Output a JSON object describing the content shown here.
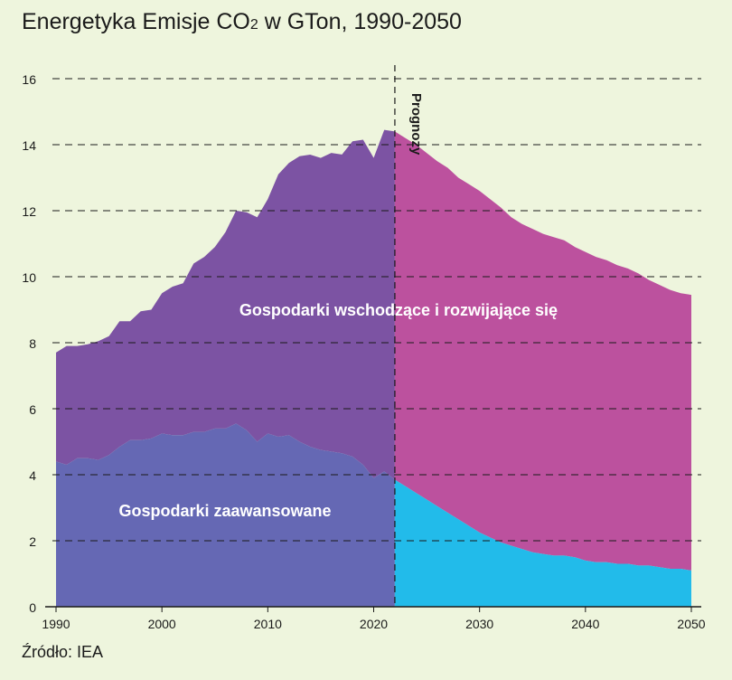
{
  "title_main": "Energetyka Emisje CO",
  "title_sub": "2",
  "title_rest": " w GTon, 1990-2050",
  "source": "Źródło: IEA",
  "forecast_label": "Prognozy",
  "colors": {
    "background": "#eef5dd",
    "emerging_history": "#7c53a3",
    "emerging_forecast": "#bc519e",
    "advanced_history": "#6568b4",
    "advanced_forecast": "#22bbea"
  },
  "chart_data": {
    "type": "area",
    "stacked": true,
    "title": "Energetyka Emisje CO2 w GTon, 1990-2050",
    "xlim": [
      1990,
      2050
    ],
    "ylim": [
      0,
      16
    ],
    "x_ticks": [
      1990,
      2000,
      2010,
      2020,
      2030,
      2040,
      2050
    ],
    "y_ticks": [
      0,
      2,
      4,
      6,
      8,
      10,
      12,
      14,
      16
    ],
    "grid": "horizontal dashed",
    "forecast_start": 2022,
    "series": [
      {
        "name": "Gospodarki zaawansowane",
        "x": [
          1990,
          1991,
          1992,
          1993,
          1994,
          1995,
          1996,
          1997,
          1998,
          1999,
          2000,
          2001,
          2002,
          2003,
          2004,
          2005,
          2006,
          2007,
          2008,
          2009,
          2010,
          2011,
          2012,
          2013,
          2014,
          2015,
          2016,
          2017,
          2018,
          2019,
          2020,
          2021,
          2022,
          2023,
          2024,
          2025,
          2026,
          2027,
          2028,
          2029,
          2030,
          2031,
          2032,
          2033,
          2034,
          2035,
          2036,
          2037,
          2038,
          2039,
          2040,
          2041,
          2042,
          2043,
          2044,
          2045,
          2046,
          2047,
          2048,
          2049,
          2050
        ],
        "values": [
          4.4,
          4.3,
          4.5,
          4.5,
          4.45,
          4.6,
          4.85,
          5.05,
          5.05,
          5.1,
          5.25,
          5.2,
          5.2,
          5.3,
          5.3,
          5.4,
          5.4,
          5.55,
          5.35,
          5.0,
          5.25,
          5.15,
          5.2,
          5.0,
          4.85,
          4.75,
          4.7,
          4.65,
          4.55,
          4.3,
          3.9,
          4.1,
          3.85,
          3.65,
          3.45,
          3.25,
          3.05,
          2.85,
          2.65,
          2.45,
          2.25,
          2.1,
          1.95,
          1.85,
          1.75,
          1.65,
          1.6,
          1.55,
          1.55,
          1.5,
          1.4,
          1.35,
          1.35,
          1.3,
          1.3,
          1.25,
          1.25,
          1.2,
          1.15,
          1.15,
          1.1
        ]
      },
      {
        "name": "Gospodarki wschodzące i rozwijające się",
        "x": [
          1990,
          1991,
          1992,
          1993,
          1994,
          1995,
          1996,
          1997,
          1998,
          1999,
          2000,
          2001,
          2002,
          2003,
          2004,
          2005,
          2006,
          2007,
          2008,
          2009,
          2010,
          2011,
          2012,
          2013,
          2014,
          2015,
          2016,
          2017,
          2018,
          2019,
          2020,
          2021,
          2022,
          2023,
          2024,
          2025,
          2026,
          2027,
          2028,
          2029,
          2030,
          2031,
          2032,
          2033,
          2034,
          2035,
          2036,
          2037,
          2038,
          2039,
          2040,
          2041,
          2042,
          2043,
          2044,
          2045,
          2046,
          2047,
          2048,
          2049,
          2050
        ],
        "values": [
          3.3,
          3.6,
          3.4,
          3.45,
          3.6,
          3.6,
          3.8,
          3.6,
          3.9,
          3.9,
          4.25,
          4.5,
          4.6,
          5.1,
          5.3,
          5.5,
          5.95,
          6.45,
          6.6,
          6.8,
          7.1,
          7.95,
          8.25,
          8.65,
          8.85,
          8.85,
          9.05,
          9.05,
          9.55,
          9.85,
          9.7,
          10.35,
          10.55,
          10.55,
          10.55,
          10.5,
          10.45,
          10.45,
          10.35,
          10.35,
          10.35,
          10.25,
          10.15,
          9.95,
          9.85,
          9.8,
          9.7,
          9.65,
          9.55,
          9.4,
          9.35,
          9.25,
          9.15,
          9.05,
          8.95,
          8.85,
          8.65,
          8.55,
          8.45,
          8.35,
          8.35
        ]
      }
    ],
    "annotations": [
      "Gospodarki wschodzące i rozwijające się",
      "Gospodarki zaawansowane",
      "Prognozy"
    ]
  }
}
